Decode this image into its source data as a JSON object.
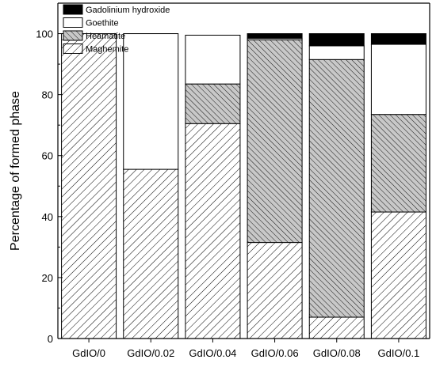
{
  "chart_data": {
    "type": "bar",
    "stacked": true,
    "title": "",
    "xlabel": "",
    "ylabel": "Percentage of formed phase",
    "ylim": [
      0,
      110
    ],
    "yticks": [
      0,
      20,
      40,
      60,
      80,
      100
    ],
    "grid": false,
    "legend_position": "top-left",
    "categories": [
      "GdIO/0",
      "GdIO/0.02",
      "GdIO/0.04",
      "GdIO/0.06",
      "GdIO/0.08",
      "GdIO/0.1"
    ],
    "series": [
      {
        "name": "Maghemite",
        "fill": "hatch-light",
        "values": [
          100,
          55.5,
          70.5,
          31.5,
          7,
          41.5
        ]
      },
      {
        "name": "Heamatite",
        "fill": "hatch-dense",
        "values": [
          0,
          0,
          13,
          66.5,
          84.5,
          32
        ]
      },
      {
        "name": "Goethite",
        "fill": "white",
        "values": [
          0,
          44.5,
          16,
          0.5,
          4.5,
          23
        ]
      },
      {
        "name": "Gadolinium hydroxide",
        "fill": "black",
        "values": [
          0,
          0,
          0,
          1.5,
          4,
          3.5
        ]
      }
    ],
    "legend_order": [
      "Gadolinium hydroxide",
      "Goethite",
      "Heamatite",
      "Maghemite"
    ],
    "colors": {
      "axis": "#000000",
      "hatch_bg_dense": "#c8c8c8",
      "black_fill": "#000000",
      "white_fill": "#ffffff"
    }
  }
}
